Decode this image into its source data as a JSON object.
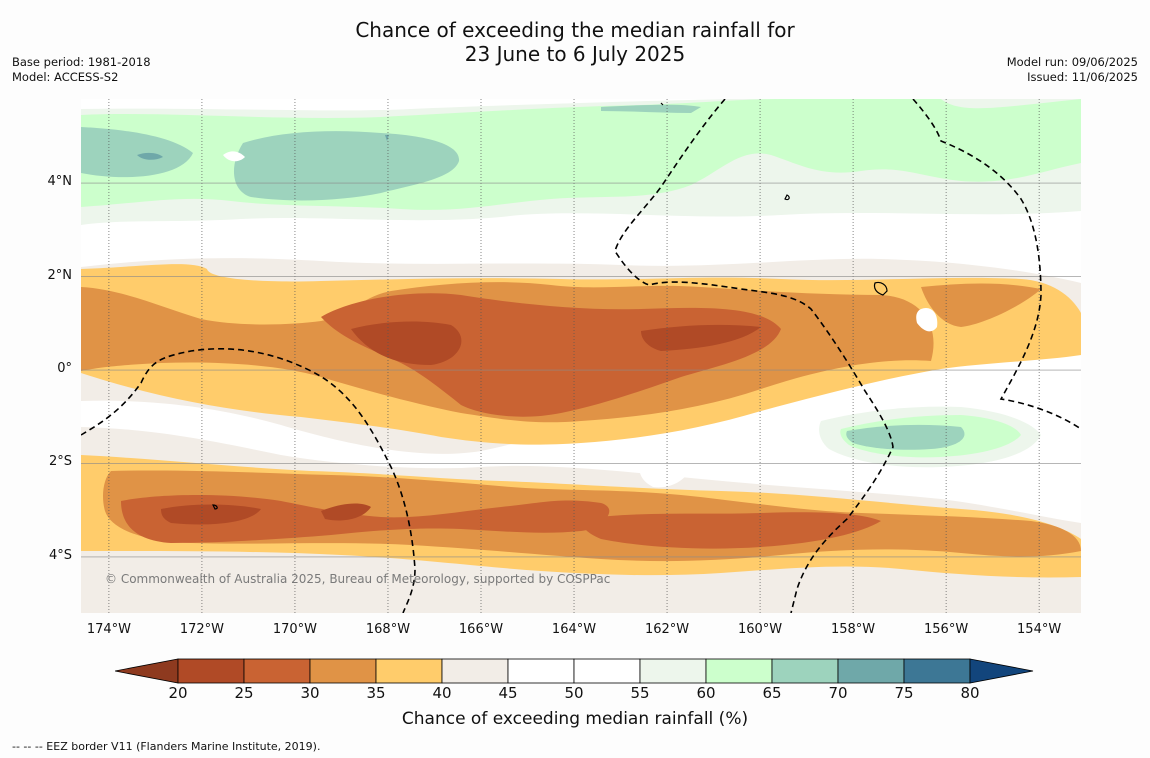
{
  "header": {
    "title_line1": "Chance of exceeding the median rainfall for",
    "title_line2": "23 June to 6 July 2025",
    "base_period": "Base period: 1981-2018",
    "model": "Model: ACCESS-S2",
    "model_run": "Model run: 09/06/2025",
    "issued": "Issued: 11/06/2025"
  },
  "map": {
    "lon_range": [
      -174.6,
      -153.1
    ],
    "lat_range": [
      -5.2,
      5.8
    ],
    "lon_ticks": [
      "174°W",
      "172°W",
      "170°W",
      "168°W",
      "166°W",
      "164°W",
      "162°W",
      "160°W",
      "158°W",
      "156°W",
      "154°W"
    ],
    "lon_values": [
      -174,
      -172,
      -170,
      -168,
      -166,
      -164,
      -162,
      -160,
      -158,
      -156,
      -154
    ],
    "lat_ticks": [
      "4°N",
      "2°N",
      "0°",
      "2°S",
      "4°S"
    ],
    "lat_values": [
      4,
      2,
      0,
      -2,
      -4
    ],
    "copyright": "© Commonwealth of Australia 2025, Bureau of Meteorology, supported by COSPPac"
  },
  "colorbar": {
    "ticks": [
      "20",
      "25",
      "30",
      "35",
      "40",
      "45",
      "50",
      "55",
      "60",
      "65",
      "70",
      "75",
      "80"
    ],
    "colors": [
      "#b04a26",
      "#c96333",
      "#e09346",
      "#ffcc6b",
      "#f2ede7",
      "#ffffff",
      "#ffffff",
      "#edf6ec",
      "#ccffcc",
      "#9dd3bd",
      "#6fa8a9",
      "#3d7795"
    ],
    "under_color": "#8e3a1f",
    "over_color": "#12457c",
    "label": "Chance of exceeding median rainfall (%)"
  },
  "footnote": "--  --  -- EEZ border V11 (Flanders Marine Institute, 2019)."
}
